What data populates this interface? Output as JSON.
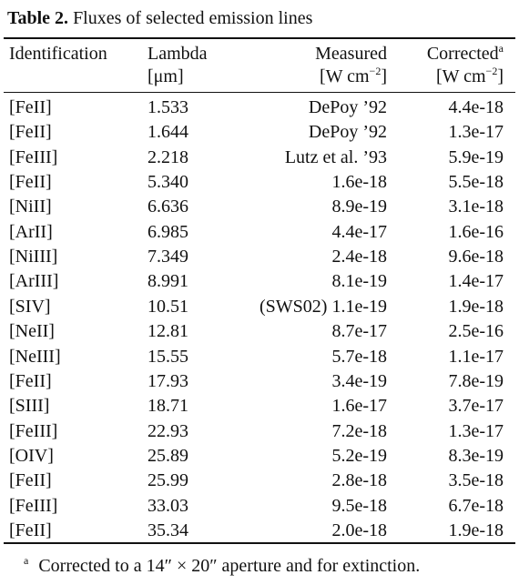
{
  "caption": {
    "label": "Table 2.",
    "text": "Fluxes of selected emission lines"
  },
  "table": {
    "headers": [
      {
        "name": "Identification"
      },
      {
        "name": "Lambda",
        "unit": [
          "[μm]"
        ]
      },
      {
        "name": "Measured",
        "unit": [
          "[W cm",
          "−2",
          "]"
        ]
      },
      {
        "name": "Corrected",
        "note": "a",
        "unit": [
          "[W cm",
          "−2",
          "]"
        ]
      }
    ],
    "rows": [
      [
        "[FeII]",
        "1.533",
        "DePoy ’92",
        "4.4e-18"
      ],
      [
        "[FeII]",
        "1.644",
        "DePoy ’92",
        "1.3e-17"
      ],
      [
        "[FeIII]",
        "2.218",
        "Lutz et al. ’93",
        "5.9e-19"
      ],
      [
        "[FeII]",
        "5.340",
        "1.6e-18",
        "5.5e-18"
      ],
      [
        "[NiII]",
        "6.636",
        "8.9e-19",
        "3.1e-18"
      ],
      [
        "[ArII]",
        "6.985",
        "4.4e-17",
        "1.6e-16"
      ],
      [
        "[NiIII]",
        "7.349",
        "2.4e-18",
        "9.6e-18"
      ],
      [
        "[ArIII]",
        "8.991",
        "8.1e-19",
        "1.4e-17"
      ],
      [
        "[SIV]",
        "10.51",
        "(SWS02) 1.1e-19",
        "1.9e-18"
      ],
      [
        "[NeII]",
        "12.81",
        "8.7e-17",
        "2.5e-16"
      ],
      [
        "[NeIII]",
        "15.55",
        "5.7e-18",
        "1.1e-17"
      ],
      [
        "[FeII]",
        "17.93",
        "3.4e-19",
        "7.8e-19"
      ],
      [
        "[SIII]",
        "18.71",
        "1.6e-17",
        "3.7e-17"
      ],
      [
        "[FeIII]",
        "22.93",
        "7.2e-18",
        "1.3e-17"
      ],
      [
        "[OIV]",
        "25.89",
        "5.2e-19",
        "8.3e-19"
      ],
      [
        "[FeII]",
        "25.99",
        "2.8e-18",
        "3.5e-18"
      ],
      [
        "[FeIII]",
        "33.03",
        "9.5e-18",
        "6.7e-18"
      ],
      [
        "[FeII]",
        "35.34",
        "2.0e-18",
        "1.9e-18"
      ]
    ]
  },
  "footnote": {
    "mark": "a",
    "text": "Corrected to a 14″ × 20″ aperture and for extinction."
  }
}
